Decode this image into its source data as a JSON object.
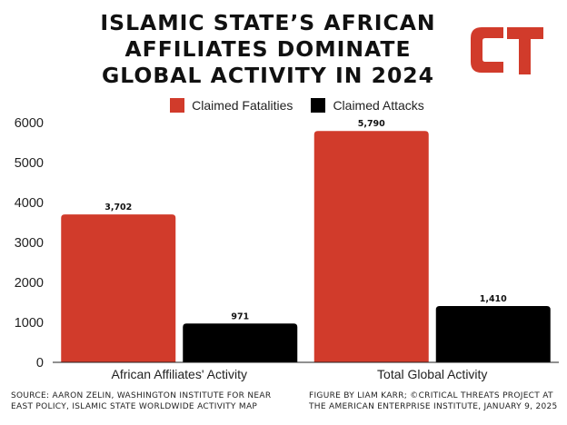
{
  "title_lines": [
    "ISLAMIC STATE’S AFRICAN",
    "AFFILIATES DOMINATE",
    "GLOBAL ACTIVITY IN 2024"
  ],
  "logo": {
    "text": "CT",
    "color": "#d13b2b"
  },
  "legend": [
    {
      "label": "Claimed Fatalities",
      "color": "#d13b2b"
    },
    {
      "label": "Claimed Attacks",
      "color": "#000000"
    }
  ],
  "footer_left": [
    "SOURCE: AARON ZELIN, WASHINGTON INSTITUTE FOR NEAR",
    "EAST POLICY,  ISLAMIC STATE WORLDWIDE ACTIVITY MAP"
  ],
  "footer_right": [
    "FIGURE BY LIAM KARR; ©CRITICAL THREATS PROJECT AT",
    "THE AMERICAN ENTERPRISE INSTITUTE, JANUARY 9, 2025"
  ],
  "chart_data": {
    "type": "bar",
    "categories": [
      "African Affiliates' Activity",
      "Total Global Activity"
    ],
    "series": [
      {
        "name": "Claimed Fatalities",
        "values": [
          3702,
          5790
        ],
        "labels": [
          "3,702",
          "5,790"
        ],
        "color": "#d13b2b"
      },
      {
        "name": "Claimed Attacks",
        "values": [
          971,
          1410
        ],
        "labels": [
          "971",
          "1,410"
        ],
        "color": "#000000"
      }
    ],
    "ylim": [
      0,
      6000
    ],
    "yticks": [
      0,
      1000,
      2000,
      3000,
      4000,
      5000,
      6000
    ],
    "ytick_labels": [
      "0",
      "1000",
      "2000",
      "3000",
      "4000",
      "5000",
      "6000"
    ],
    "xlabel": "",
    "ylabel": "",
    "grid": false,
    "legend_position": "top-center"
  }
}
